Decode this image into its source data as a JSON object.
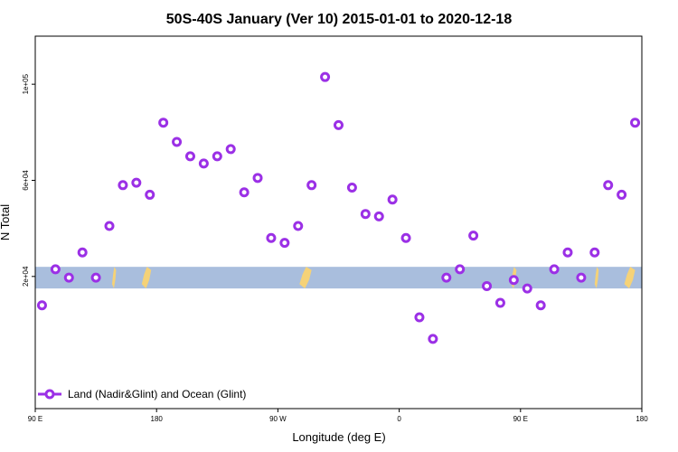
{
  "chart_data": {
    "type": "scatter",
    "title": "50S-40S January (Ver 10)   2015-01-01 to 2020-12-18",
    "xlabel": "Longitude (deg E)",
    "ylabel": "N Total",
    "xlim": [
      0,
      45
    ],
    "ylim": [
      -35000,
      120000
    ],
    "x_ticks": [
      {
        "value": 0,
        "label": "90 E"
      },
      {
        "value": 9,
        "label": "180"
      },
      {
        "value": 18,
        "label": "90 W"
      },
      {
        "value": 27,
        "label": "0"
      },
      {
        "value": 36,
        "label": "90 E"
      },
      {
        "value": 45,
        "label": "180"
      }
    ],
    "y_ticks": [
      {
        "value": 20000,
        "label": "2e+04"
      },
      {
        "value": 60000,
        "label": "6e+04"
      },
      {
        "value": 100000,
        "label": "1e+05"
      }
    ],
    "ocean_band": {
      "y_low": 15000,
      "y_high": 24000,
      "color": "#a9bedd"
    },
    "land_color": "#f5d278",
    "land_patches": [
      {
        "x": 5.7,
        "width": 0.3
      },
      {
        "x": 7.9,
        "width": 0.7
      },
      {
        "x": 19.6,
        "width": 0.9
      },
      {
        "x": 35.3,
        "width": 0.4
      },
      {
        "x": 41.5,
        "width": 0.3
      },
      {
        "x": 43.7,
        "width": 0.8
      }
    ],
    "series": [
      {
        "name": "Land (Nadir&Glint) and Ocean (Glint)",
        "color": "#9b30e6",
        "x": [
          0.5,
          1.5,
          2.5,
          3.5,
          4.5,
          5.5,
          6.5,
          7.5,
          8.5,
          9.5,
          10.5,
          11.5,
          12.5,
          13.5,
          14.5,
          15.5,
          16.5,
          17.5,
          18.5,
          19.5,
          20.5,
          21.5,
          22.5,
          23.5,
          24.5,
          25.5,
          26.5,
          27.5,
          28.5,
          29.5,
          30.5,
          31.5,
          32.5,
          33.5,
          34.5,
          35.5,
          36.5,
          37.5,
          38.5,
          39.5,
          40.5,
          41.5,
          42.5,
          43.5,
          44.5
        ],
        "y": [
          8000,
          23000,
          19500,
          30000,
          19500,
          41000,
          58000,
          59000,
          54000,
          84000,
          76000,
          70000,
          67000,
          70000,
          73000,
          55000,
          61000,
          36000,
          34000,
          41000,
          58000,
          103000,
          83000,
          57000,
          46000,
          45000,
          52000,
          36000,
          3000,
          -6000,
          19500,
          23000,
          37000,
          16000,
          9000,
          18500,
          15000,
          8000,
          23000,
          30000,
          19500,
          30000,
          58000,
          54000,
          84000
        ]
      }
    ],
    "legend": {
      "position": "bottom-left"
    },
    "grid": false
  }
}
